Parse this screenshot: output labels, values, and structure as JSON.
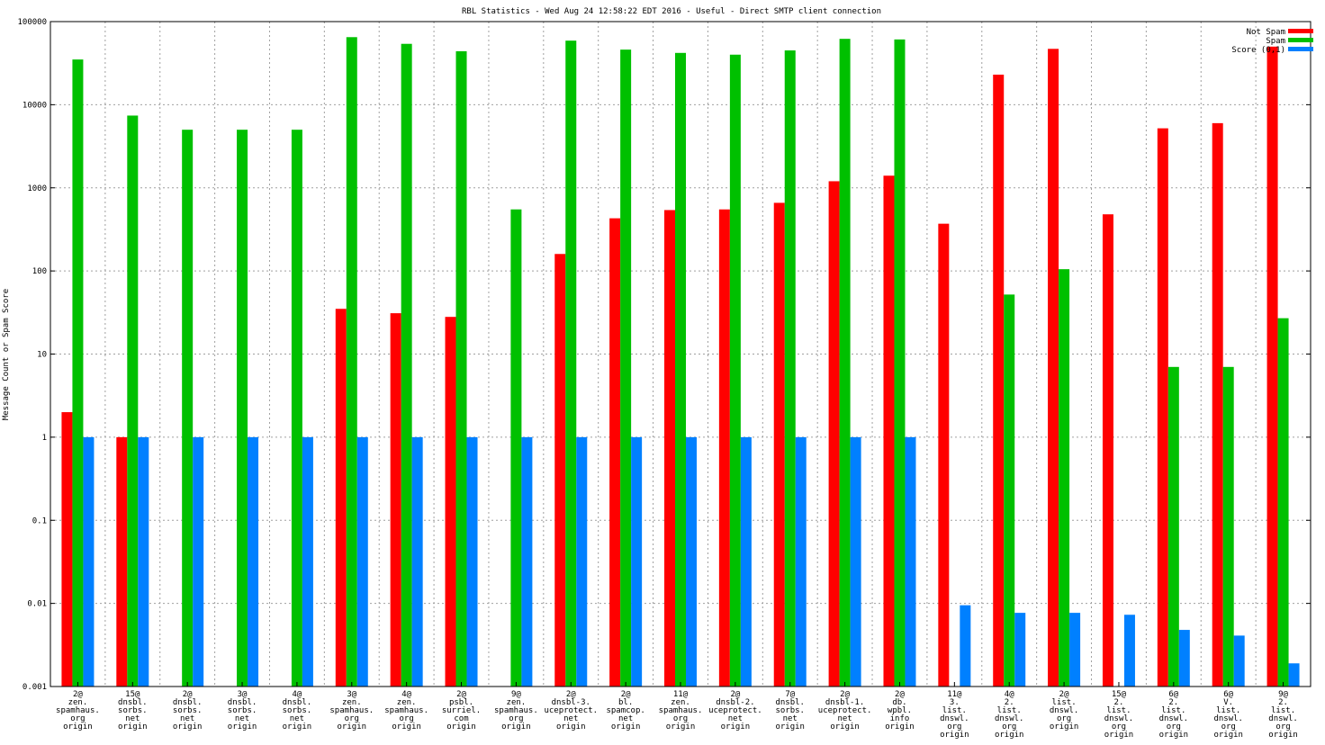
{
  "chart_data": {
    "type": "bar",
    "title": "RBL Statistics - Wed Aug 24 12:58:22 EDT 2016 - Useful - Direct SMTP client connection",
    "ylabel": "Message Count or Spam Score",
    "xlabel": "",
    "yscale": "log",
    "ylim": [
      0.001,
      100000
    ],
    "grid": true,
    "legend_position": "top-right",
    "y_ticks": [
      "0.001",
      "0.01",
      "0.1",
      "1",
      "10",
      "100",
      "1000",
      "10000",
      "100000"
    ],
    "categories": [
      "2@\nzen.\nspamhaus.\norg\norigin",
      "15@\ndnsbl.\nsorbs.\nnet\norigin",
      "2@\ndnsbl.\nsorbs.\nnet\norigin",
      "3@\ndnsbl.\nsorbs.\nnet\norigin",
      "4@\ndnsbl.\nsorbs.\nnet\norigin",
      "3@\nzen.\nspamhaus.\norg\norigin",
      "4@\nzen.\nspamhaus.\norg\norigin",
      "2@\npsbl.\nsurriel.\ncom\norigin",
      "9@\nzen.\nspamhaus.\norg\norigin",
      "2@\ndnsbl-3.\nuceprotect.\nnet\norigin",
      "2@\nbl.\nspamcop.\nnet\norigin",
      "11@\nzen.\nspamhaus.\norg\norigin",
      "2@\ndnsbl-2.\nuceprotect.\nnet\norigin",
      "7@\ndnsbl.\nsorbs.\nnet\norigin",
      "2@\ndnsbl-1.\nuceprotect.\nnet\norigin",
      "2@\ndb.\nwpbl.\ninfo\norigin",
      "11@\n3.\nlist.\ndnswl.\norg\norigin",
      "4@\n2.\nlist.\ndnswl.\norg\norigin",
      "2@\nlist.\ndnswl.\norg\norigin",
      "15@\n2.\nlist.\ndnswl.\norg\norigin",
      "6@\n2.\nlist.\ndnswl.\norg\norigin",
      "6@\nV.\nlist.\ndnswl.\norg\norigin",
      "9@\n2.\nlist.\ndnswl.\norg\norigin"
    ],
    "series": [
      {
        "name": "Not Spam",
        "color": "#ff0000",
        "values": [
          2,
          1,
          null,
          null,
          null,
          35,
          31,
          28,
          null,
          160,
          430,
          540,
          550,
          660,
          1200,
          1400,
          370,
          23000,
          47000,
          480,
          5200,
          6000,
          50000
        ]
      },
      {
        "name": "Spam",
        "color": "#00c000",
        "values": [
          35000,
          7400,
          5000,
          5000,
          5000,
          65000,
          54000,
          44000,
          550,
          59000,
          46000,
          42000,
          40000,
          45000,
          62000,
          61000,
          null,
          52,
          105,
          null,
          7,
          7,
          27
        ]
      },
      {
        "name": "Score (0,1)",
        "color": "#0080ff",
        "values": [
          1,
          1,
          1,
          1,
          1,
          1,
          1,
          1,
          1,
          1,
          1,
          1,
          1,
          1,
          1,
          1,
          0.0095,
          0.0077,
          0.0077,
          0.0073,
          0.0048,
          0.0041,
          0.0019
        ]
      }
    ]
  }
}
